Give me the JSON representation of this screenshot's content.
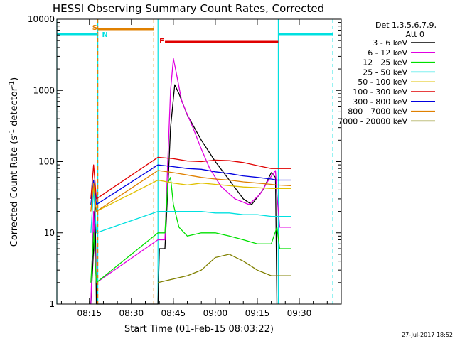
{
  "chart_data": {
    "type": "line",
    "title": "HESSI Observing Summary Count Rates, Corrected",
    "xlabel": "Start Time (01-Feb-15 08:03:22)",
    "ylabel_base": "Corrected Count Rate (s",
    "ylabel_sup1": "-1",
    "ylabel_mid": " detector",
    "ylabel_sup2": "-1",
    "ylabel_end": ")",
    "y_scale": "log",
    "ylim": [
      1,
      10000
    ],
    "xlim": [
      "08:03:22",
      "09:45:00"
    ],
    "x_ticks": [
      "08:15",
      "08:30",
      "08:45",
      "09:00",
      "09:15",
      "09:30"
    ],
    "y_ticks": [
      "1",
      "10",
      "100",
      "1000",
      "10000"
    ],
    "legend_header": [
      "Det 1,3,5,6,7,9,",
      "Att 0"
    ],
    "legend_placement": "right",
    "series": [
      {
        "name": "3 - 6 keV",
        "color": "#000000",
        "points": [
          [
            "08:15:30",
            1
          ],
          [
            "08:16:30",
            6
          ],
          [
            "08:17:00",
            30
          ],
          [
            "08:17:30",
            1
          ],
          [
            "08:39:30",
            1
          ],
          [
            "08:40:00",
            6
          ],
          [
            "08:42:00",
            6
          ],
          [
            "08:43:00",
            40
          ],
          [
            "08:44:00",
            300
          ],
          [
            "08:45:30",
            1200
          ],
          [
            "08:47:00",
            900
          ],
          [
            "08:50:00",
            450
          ],
          [
            "08:55:00",
            200
          ],
          [
            "09:00:00",
            100
          ],
          [
            "09:05:00",
            55
          ],
          [
            "09:10:00",
            30
          ],
          [
            "09:13:00",
            25
          ],
          [
            "09:17:00",
            40
          ],
          [
            "09:20:00",
            70
          ],
          [
            "09:21:30",
            60
          ],
          [
            "09:22:00",
            1
          ]
        ]
      },
      {
        "name": "6 - 12 keV",
        "color": "#e000e0",
        "points": [
          [
            "08:15:30",
            1
          ],
          [
            "08:16:30",
            20
          ],
          [
            "08:17:30",
            2
          ],
          [
            "08:39:30",
            8
          ],
          [
            "08:42:00",
            8
          ],
          [
            "08:43:00",
            100
          ],
          [
            "08:44:00",
            1000
          ],
          [
            "08:45:00",
            2800
          ],
          [
            "08:46:00",
            1800
          ],
          [
            "08:48:00",
            700
          ],
          [
            "08:52:00",
            300
          ],
          [
            "08:55:00",
            150
          ],
          [
            "08:58:00",
            80
          ],
          [
            "09:02:00",
            45
          ],
          [
            "09:07:00",
            30
          ],
          [
            "09:12:00",
            25
          ],
          [
            "09:16:00",
            35
          ],
          [
            "09:19:00",
            55
          ],
          [
            "09:21:30",
            75
          ],
          [
            "09:22:00",
            35
          ],
          [
            "09:23:00",
            12
          ],
          [
            "09:27:00",
            12
          ]
        ]
      },
      {
        "name": "12 - 25 keV",
        "color": "#00e000",
        "points": [
          [
            "08:15:30",
            2
          ],
          [
            "08:16:30",
            10
          ],
          [
            "08:17:30",
            2
          ],
          [
            "08:39:30",
            10
          ],
          [
            "08:42:00",
            10
          ],
          [
            "08:43:00",
            50
          ],
          [
            "08:44:00",
            60
          ],
          [
            "08:45:00",
            25
          ],
          [
            "08:47:00",
            12
          ],
          [
            "08:50:00",
            9
          ],
          [
            "08:55:00",
            10
          ],
          [
            "09:00:00",
            10
          ],
          [
            "09:05:00",
            9
          ],
          [
            "09:10:00",
            8
          ],
          [
            "09:15:00",
            7
          ],
          [
            "09:20:00",
            7
          ],
          [
            "09:22:00",
            12
          ],
          [
            "09:23:00",
            6
          ],
          [
            "09:27:00",
            6
          ]
        ]
      },
      {
        "name": "25 - 50 keV",
        "color": "#00e0e0",
        "points": [
          [
            "08:15:30",
            10
          ],
          [
            "08:16:30",
            40
          ],
          [
            "08:17:30",
            10
          ],
          [
            "08:39:30",
            20
          ],
          [
            "08:45:00",
            20
          ],
          [
            "08:50:00",
            20
          ],
          [
            "08:55:00",
            20
          ],
          [
            "09:00:00",
            19
          ],
          [
            "09:05:00",
            19
          ],
          [
            "09:10:00",
            18
          ],
          [
            "09:15:00",
            18
          ],
          [
            "09:20:00",
            17
          ],
          [
            "09:22:00",
            17
          ],
          [
            "09:23:00",
            17
          ],
          [
            "09:27:00",
            17
          ]
        ]
      },
      {
        "name": "50 - 100 keV",
        "color": "#e0c000",
        "points": [
          [
            "08:15:30",
            20
          ],
          [
            "08:16:30",
            45
          ],
          [
            "08:17:30",
            20
          ],
          [
            "08:39:30",
            55
          ],
          [
            "08:45:00",
            50
          ],
          [
            "08:50:00",
            47
          ],
          [
            "08:55:00",
            50
          ],
          [
            "09:00:00",
            48
          ],
          [
            "09:05:00",
            46
          ],
          [
            "09:10:00",
            44
          ],
          [
            "09:15:00",
            43
          ],
          [
            "09:20:00",
            42
          ],
          [
            "09:22:00",
            42
          ],
          [
            "09:27:00",
            42
          ]
        ]
      },
      {
        "name": "100 - 300 keV",
        "color": "#e00000",
        "points": [
          [
            "08:15:30",
            30
          ],
          [
            "08:16:30",
            90
          ],
          [
            "08:17:30",
            30
          ],
          [
            "08:39:30",
            115
          ],
          [
            "08:45:00",
            110
          ],
          [
            "08:50:00",
            102
          ],
          [
            "08:55:00",
            100
          ],
          [
            "09:00:00",
            105
          ],
          [
            "09:05:00",
            103
          ],
          [
            "09:10:00",
            97
          ],
          [
            "09:15:00",
            88
          ],
          [
            "09:20:00",
            80
          ],
          [
            "09:22:00",
            80
          ],
          [
            "09:27:00",
            80
          ]
        ]
      },
      {
        "name": "300 - 800 keV",
        "color": "#0000e0",
        "points": [
          [
            "08:15:30",
            25
          ],
          [
            "08:16:30",
            55
          ],
          [
            "08:17:30",
            25
          ],
          [
            "08:39:30",
            90
          ],
          [
            "08:45:00",
            85
          ],
          [
            "08:50:00",
            80
          ],
          [
            "08:55:00",
            78
          ],
          [
            "09:00:00",
            72
          ],
          [
            "09:05:00",
            68
          ],
          [
            "09:10:00",
            63
          ],
          [
            "09:15:00",
            60
          ],
          [
            "09:20:00",
            57
          ],
          [
            "09:22:00",
            55
          ],
          [
            "09:27:00",
            55
          ]
        ]
      },
      {
        "name": "800 - 7000 keV",
        "color": "#e08000",
        "points": [
          [
            "08:15:30",
            20
          ],
          [
            "08:16:30",
            50
          ],
          [
            "08:17:30",
            20
          ],
          [
            "08:39:30",
            75
          ],
          [
            "08:45:00",
            70
          ],
          [
            "08:50:00",
            65
          ],
          [
            "08:55:00",
            60
          ],
          [
            "09:00:00",
            57
          ],
          [
            "09:05:00",
            55
          ],
          [
            "09:10:00",
            52
          ],
          [
            "09:15:00",
            50
          ],
          [
            "09:20:00",
            48
          ],
          [
            "09:22:00",
            47
          ],
          [
            "09:27:00",
            46
          ]
        ]
      },
      {
        "name": "7000 - 20000 keV",
        "color": "#808000",
        "points": [
          [
            "08:39:30",
            2
          ],
          [
            "08:50:00",
            2.5
          ],
          [
            "08:55:00",
            3
          ],
          [
            "09:00:00",
            4.5
          ],
          [
            "09:05:00",
            5
          ],
          [
            "09:10:00",
            4
          ],
          [
            "09:15:00",
            3
          ],
          [
            "09:20:00",
            2.5
          ],
          [
            "09:27:00",
            2.5
          ]
        ]
      }
    ],
    "flags": [
      {
        "label": "S",
        "color": "#e08000",
        "row": 1,
        "start": "08:18:00",
        "end": "08:38:00"
      },
      {
        "label": "N",
        "color": "#00e0e0",
        "row": 2,
        "start": "08:03:22",
        "end": "08:18:00"
      },
      {
        "label": "N",
        "color": "#00e0e0",
        "row": 2,
        "start": "09:22:30",
        "end": "09:42:00"
      },
      {
        "label": "F",
        "color": "#e00000",
        "row": 3,
        "start": "08:42:00",
        "end": "09:22:30"
      }
    ],
    "flag_labels_shown": [
      {
        "label": "S",
        "color": "#e08000"
      },
      {
        "label": "N",
        "color": "#00e0e0"
      },
      {
        "label": "F",
        "color": "#e00000"
      }
    ],
    "vlines": [
      {
        "time": "08:03:22",
        "color": "#00e0e0",
        "style": "solid"
      },
      {
        "time": "08:18:00",
        "color": "#00e0e0",
        "style": "solid"
      },
      {
        "time": "08:18:00",
        "color": "#e08000",
        "style": "dashed"
      },
      {
        "time": "08:38:00",
        "color": "#e08000",
        "style": "dashed"
      },
      {
        "time": "08:39:30",
        "color": "#00e0e0",
        "style": "solid"
      },
      {
        "time": "09:22:30",
        "color": "#00e0e0",
        "style": "solid"
      },
      {
        "time": "09:42:00",
        "color": "#00e0e0",
        "style": "dashed"
      }
    ],
    "timestamp": "27-Jul-2017 18:52"
  }
}
